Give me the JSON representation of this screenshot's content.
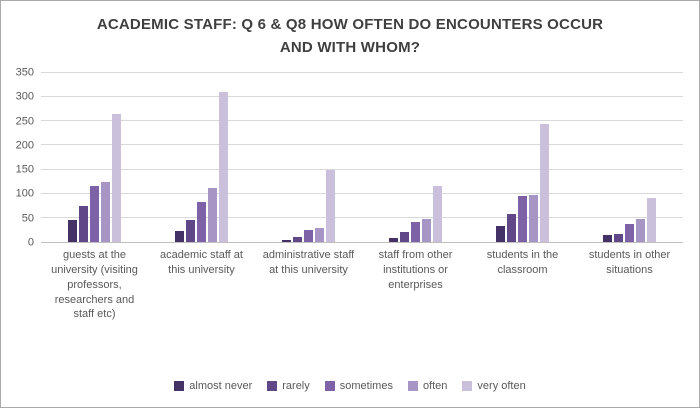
{
  "title_text": "ACADEMIC STAFF: Q 6 & Q8 HOW OFTEN DO ENCOUNTERS OCCUR\nAND WITH WHOM?",
  "chart_data": {
    "type": "bar",
    "title": "ACADEMIC STAFF: Q 6 & Q8 HOW OFTEN DO ENCOUNTERS OCCUR AND WITH WHOM?",
    "categories": [
      "guests at the university (visiting professors, researchers and staff etc)",
      "academic staff at this university",
      "administrative staff at this university",
      "staff from other institutions or enterprises",
      "students in the classroom",
      "students in other situations"
    ],
    "series": [
      {
        "name": "almost never",
        "color": "#443266",
        "values": [
          45,
          22,
          5,
          8,
          33,
          15
        ]
      },
      {
        "name": "rarely",
        "color": "#5f4788",
        "values": [
          75,
          45,
          10,
          20,
          57,
          17
        ]
      },
      {
        "name": "sometimes",
        "color": "#7d62a8",
        "values": [
          115,
          82,
          25,
          42,
          95,
          37
        ]
      },
      {
        "name": "often",
        "color": "#a795c5",
        "values": [
          125,
          112,
          30,
          47,
          98,
          47
        ]
      },
      {
        "name": "very often",
        "color": "#cbc0dc",
        "values": [
          265,
          310,
          150,
          117,
          245,
          92
        ]
      }
    ],
    "ylim": [
      0,
      350
    ],
    "ytick_step": 50,
    "grid": true,
    "legend_position": "bottom",
    "axis_color": "#bfbfbf",
    "gridline_color": "#d9d9d9",
    "label_color": "#595959",
    "title_color": "#3f3f3f"
  }
}
